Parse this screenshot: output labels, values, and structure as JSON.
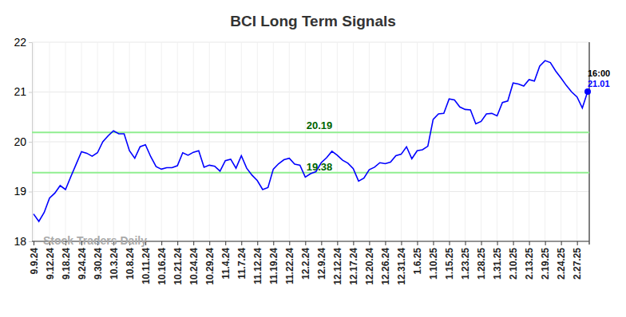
{
  "chart_data": {
    "type": "line",
    "title": "BCI Long Term Signals",
    "watermark": "Stock Traders Daily",
    "time_label": "16:00",
    "categories": [
      "9.9.24",
      null,
      null,
      "9.12.24",
      null,
      null,
      "9.18.24",
      null,
      null,
      "9.24.24",
      null,
      null,
      "9.30.24",
      null,
      null,
      "10.3.24",
      null,
      null,
      "10.8.24",
      null,
      null,
      "10.11.24",
      null,
      null,
      "10.16.24",
      null,
      null,
      "10.21.24",
      null,
      null,
      "10.24.24",
      null,
      null,
      "10.29.24",
      null,
      null,
      "11.4.24",
      null,
      null,
      "11.7.24",
      null,
      null,
      "11.12.24",
      null,
      null,
      "11.19.24",
      null,
      null,
      "11.22.24",
      null,
      null,
      "12.2.24",
      null,
      null,
      "12.9.24",
      null,
      null,
      "12.12.24",
      null,
      null,
      "12.17.24",
      null,
      null,
      "12.20.24",
      null,
      null,
      "12.26.24",
      null,
      null,
      "12.31.24",
      null,
      null,
      "1.6.25",
      null,
      null,
      "1.10.25",
      null,
      null,
      "1.15.25",
      null,
      null,
      "1.23.25",
      null,
      null,
      "1.28.25",
      null,
      null,
      "1.31.25",
      null,
      null,
      "2.10.25",
      null,
      null,
      "2.13.25",
      null,
      null,
      "2.19.25",
      null,
      null,
      "2.24.25",
      null,
      null,
      "2.27.25",
      null,
      null
    ],
    "series": [
      {
        "name": "BCI",
        "color": "#0000ff",
        "values": [
          18.55,
          18.4,
          18.58,
          18.87,
          18.97,
          19.12,
          19.04,
          19.3,
          19.55,
          19.8,
          19.77,
          19.71,
          19.78,
          20.0,
          20.12,
          20.22,
          20.16,
          20.16,
          19.82,
          19.67,
          19.9,
          19.94,
          19.7,
          19.5,
          19.45,
          19.48,
          19.48,
          19.52,
          19.78,
          19.73,
          19.79,
          19.82,
          19.49,
          19.53,
          19.51,
          19.41,
          19.62,
          19.65,
          19.47,
          19.72,
          19.47,
          19.33,
          19.22,
          19.04,
          19.08,
          19.45,
          19.56,
          19.64,
          19.67,
          19.55,
          19.53,
          19.29,
          19.36,
          19.4,
          19.58,
          19.68,
          19.81,
          19.73,
          19.63,
          19.57,
          19.46,
          19.21,
          19.27,
          19.44,
          19.49,
          19.58,
          19.56,
          19.59,
          19.72,
          19.75,
          19.9,
          19.66,
          19.82,
          19.84,
          19.91,
          20.45,
          20.56,
          20.57,
          20.86,
          20.84,
          20.7,
          20.65,
          20.64,
          20.36,
          20.41,
          20.56,
          20.57,
          20.52,
          20.79,
          20.82,
          21.18,
          21.16,
          21.12,
          21.25,
          21.22,
          21.52,
          21.63,
          21.59,
          21.42,
          21.28,
          21.13,
          21.0,
          20.9,
          20.68,
          21.01
        ]
      }
    ],
    "hlines": [
      {
        "value": 20.19,
        "color": "#90ee90"
      },
      {
        "value": 19.38,
        "color": "#90ee90"
      }
    ],
    "ylim": [
      18,
      22
    ],
    "yticks": [
      18,
      19,
      20,
      21,
      22
    ],
    "grid": true
  }
}
